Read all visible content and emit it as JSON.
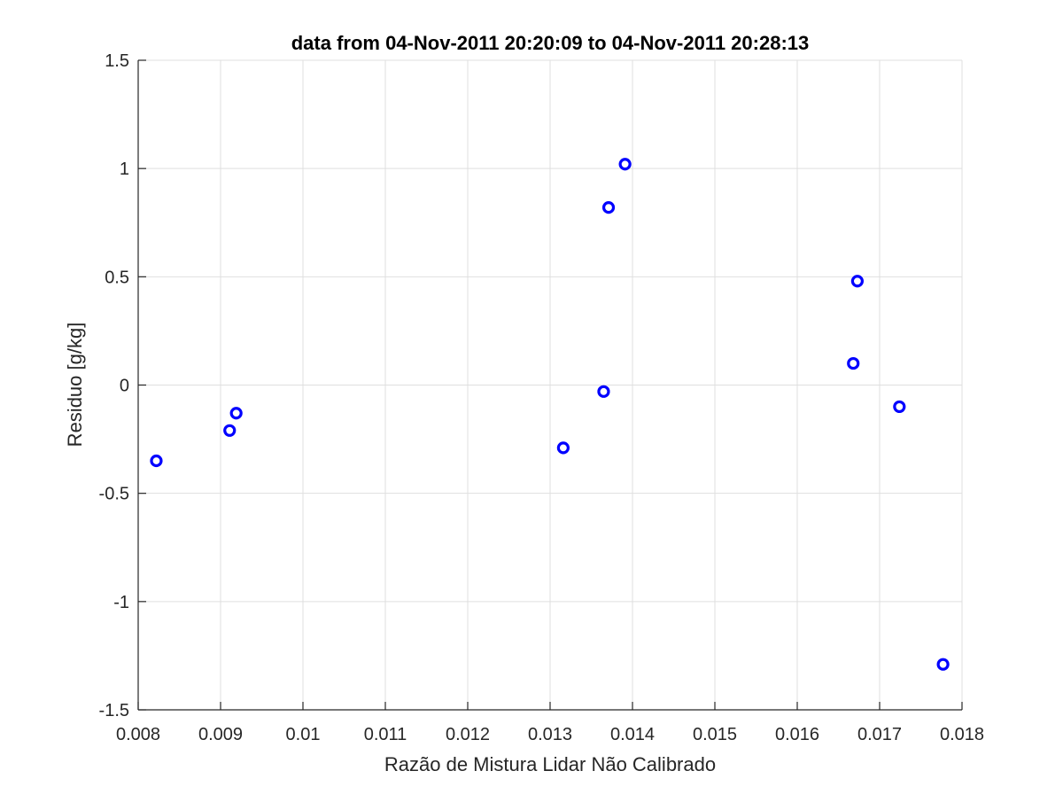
{
  "chart_data": {
    "type": "scatter",
    "title": "data from 04-Nov-2011 20:20:09 to 04-Nov-2011 20:28:13",
    "xlabel": "Razão de Mistura Lidar Não Calibrado",
    "ylabel": "Residuo [g/kg]",
    "xlim": [
      0.008,
      0.018
    ],
    "ylim": [
      -1.5,
      1.5
    ],
    "xticks": [
      0.008,
      0.009,
      0.01,
      0.011,
      0.012,
      0.013,
      0.014,
      0.015,
      0.016,
      0.017,
      0.018
    ],
    "xtick_labels": [
      "0.008",
      "0.009",
      "0.01",
      "0.011",
      "0.012",
      "0.013",
      "0.014",
      "0.015",
      "0.016",
      "0.017",
      "0.018"
    ],
    "yticks": [
      -1.5,
      -1,
      -0.5,
      0,
      0.5,
      1,
      1.5
    ],
    "ytick_labels": [
      "-1.5",
      "-1",
      "-0.5",
      "0",
      "0.5",
      "1",
      "1.5"
    ],
    "grid": true,
    "marker": "circle",
    "color": "#0000ff",
    "points": [
      {
        "x": 0.00822,
        "y": -0.35
      },
      {
        "x": 0.00911,
        "y": -0.21
      },
      {
        "x": 0.00919,
        "y": -0.13
      },
      {
        "x": 0.01316,
        "y": -0.29
      },
      {
        "x": 0.01365,
        "y": -0.03
      },
      {
        "x": 0.01371,
        "y": 0.82
      },
      {
        "x": 0.01391,
        "y": 1.02
      },
      {
        "x": 0.01668,
        "y": 0.1
      },
      {
        "x": 0.01673,
        "y": 0.48
      },
      {
        "x": 0.01724,
        "y": -0.1
      },
      {
        "x": 0.01777,
        "y": -1.29
      }
    ]
  }
}
